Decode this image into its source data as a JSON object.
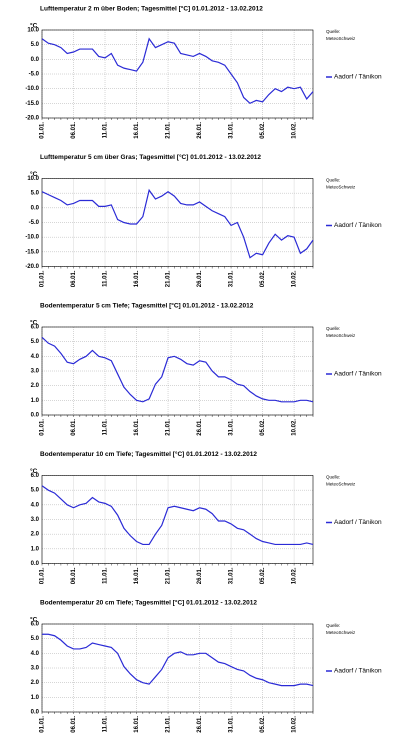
{
  "chart_data": [
    {
      "type": "line",
      "title": "Lufttemperatur 2 m über Boden; Tagesmittel [°C]  01.01.2012 - 13.02.2012",
      "y_label": "°C",
      "source": [
        "Quelle:",
        "MeteoSchweiz"
      ],
      "categories": [
        "01.01.",
        null,
        null,
        null,
        null,
        "06.01.",
        null,
        null,
        null,
        null,
        "11.01.",
        null,
        null,
        null,
        null,
        "16.01.",
        null,
        null,
        null,
        null,
        "21.01.",
        null,
        null,
        null,
        null,
        "26.01.",
        null,
        null,
        null,
        null,
        "31.01.",
        null,
        null,
        null,
        null,
        "05.02.",
        null,
        null,
        null,
        null,
        "10.02.",
        null,
        null,
        null
      ],
      "series": [
        {
          "name": "Aadorf / Tänikon",
          "color": "#2b2bd6",
          "values": [
            7,
            5.5,
            5,
            4,
            2,
            2.5,
            3.5,
            3.5,
            3.5,
            1,
            0.5,
            2,
            -2,
            -3,
            -3.5,
            -4,
            -1,
            7,
            4,
            5,
            6,
            5.5,
            2,
            1.5,
            1,
            2,
            1,
            -0.5,
            -1,
            -2,
            -5,
            -8,
            -13,
            -15,
            -14,
            -14.5,
            -12,
            -10,
            -11,
            -9.5,
            -10,
            -9.5,
            -13.5,
            -11
          ]
        }
      ],
      "ylim": [
        -20,
        10
      ],
      "yticks": [
        {
          "value": -20,
          "label": "-20.0"
        },
        {
          "value": -15,
          "label": "-15.0"
        },
        {
          "value": -10,
          "label": "-10.0"
        },
        {
          "value": -5,
          "label": "-5.0"
        },
        {
          "value": 0,
          "label": "0.0"
        },
        {
          "value": 5,
          "label": "5.0"
        },
        {
          "value": 10,
          "label": "10.0"
        }
      ],
      "grid": true
    },
    {
      "type": "line",
      "title": "Lufttemperatur 5 cm über Gras; Tagesmittel [°C]  01.01.2012 - 13.02.2012",
      "y_label": "°C",
      "source": [
        "Quelle:",
        "MeteoSchweiz"
      ],
      "categories": [
        "01.01.",
        null,
        null,
        null,
        null,
        "06.01.",
        null,
        null,
        null,
        null,
        "11.01.",
        null,
        null,
        null,
        null,
        "16.01.",
        null,
        null,
        null,
        null,
        "21.01.",
        null,
        null,
        null,
        null,
        "26.01.",
        null,
        null,
        null,
        null,
        "31.01.",
        null,
        null,
        null,
        null,
        "05.02.",
        null,
        null,
        null,
        null,
        "10.02.",
        null,
        null,
        null
      ],
      "series": [
        {
          "name": "Aadorf / Tänikon",
          "color": "#2b2bd6",
          "values": [
            5.5,
            4.5,
            3.5,
            2.5,
            1,
            1.5,
            2.5,
            2.5,
            2.5,
            0.5,
            0.5,
            1,
            -4,
            -5,
            -5.5,
            -5.5,
            -3,
            6,
            3,
            4,
            5.5,
            4,
            1.5,
            1,
            1,
            2,
            0.5,
            -1,
            -2,
            -3,
            -6,
            -5,
            -10,
            -17,
            -15.5,
            -16,
            -12,
            -9,
            -11,
            -9.5,
            -10,
            -15.5,
            -14,
            -11
          ]
        }
      ],
      "ylim": [
        -20,
        10
      ],
      "yticks": [
        {
          "value": -20,
          "label": "-20.0"
        },
        {
          "value": -15,
          "label": "-15.0"
        },
        {
          "value": -10,
          "label": "-10.0"
        },
        {
          "value": -5,
          "label": "-5.0"
        },
        {
          "value": 0,
          "label": "0.0"
        },
        {
          "value": 5,
          "label": "5.0"
        },
        {
          "value": 10,
          "label": "10.0"
        }
      ],
      "grid": true
    },
    {
      "type": "line",
      "title": "Bodentemperatur 5 cm Tiefe; Tagesmittel [°C]  01.01.2012 - 13.02.2012",
      "y_label": "°C",
      "source": [
        "Quelle:",
        "MeteoSchweiz"
      ],
      "categories": [
        "01.01.",
        null,
        null,
        null,
        null,
        "06.01.",
        null,
        null,
        null,
        null,
        "11.01.",
        null,
        null,
        null,
        null,
        "16.01.",
        null,
        null,
        null,
        null,
        "21.01.",
        null,
        null,
        null,
        null,
        "26.01.",
        null,
        null,
        null,
        null,
        "31.01.",
        null,
        null,
        null,
        null,
        "05.02.",
        null,
        null,
        null,
        null,
        "10.02.",
        null,
        null,
        null
      ],
      "series": [
        {
          "name": "Aadorf / Tänikon",
          "color": "#2b2bd6",
          "values": [
            5.3,
            4.9,
            4.7,
            4.2,
            3.6,
            3.5,
            3.8,
            4.0,
            4.4,
            4.0,
            3.9,
            3.7,
            2.8,
            1.9,
            1.4,
            1.0,
            0.9,
            1.1,
            2.1,
            2.6,
            3.9,
            4.0,
            3.8,
            3.5,
            3.4,
            3.7,
            3.6,
            3.0,
            2.6,
            2.6,
            2.4,
            2.1,
            2.0,
            1.6,
            1.3,
            1.1,
            1.0,
            1.0,
            0.9,
            0.9,
            0.9,
            1.0,
            1.0,
            0.9
          ]
        }
      ],
      "ylim": [
        0,
        6
      ],
      "yticks": [
        {
          "value": 0,
          "label": "0.0"
        },
        {
          "value": 1,
          "label": "1.0"
        },
        {
          "value": 2,
          "label": "2.0"
        },
        {
          "value": 3,
          "label": "3.0"
        },
        {
          "value": 4,
          "label": "4.0"
        },
        {
          "value": 5,
          "label": "5.0"
        },
        {
          "value": 6,
          "label": "6.0"
        }
      ],
      "grid": true
    },
    {
      "type": "line",
      "title": "Bodentemperatur 10 cm Tiefe; Tagesmittel [°C]  01.01.2012 - 13.02.2012",
      "y_label": "°C",
      "source": [
        "Quelle:",
        "MeteoSchweiz"
      ],
      "categories": [
        "01.01.",
        null,
        null,
        null,
        null,
        "06.01.",
        null,
        null,
        null,
        null,
        "11.01.",
        null,
        null,
        null,
        null,
        "16.01.",
        null,
        null,
        null,
        null,
        "21.01.",
        null,
        null,
        null,
        null,
        "26.01.",
        null,
        null,
        null,
        null,
        "31.01.",
        null,
        null,
        null,
        null,
        "05.02.",
        null,
        null,
        null,
        null,
        "10.02.",
        null,
        null,
        null
      ],
      "series": [
        {
          "name": "Aadorf / Tänikon",
          "color": "#2b2bd6",
          "values": [
            5.3,
            5.0,
            4.8,
            4.4,
            4.0,
            3.8,
            4.0,
            4.1,
            4.5,
            4.2,
            4.1,
            3.9,
            3.3,
            2.4,
            1.9,
            1.5,
            1.3,
            1.3,
            2.0,
            2.6,
            3.8,
            3.9,
            3.8,
            3.7,
            3.6,
            3.8,
            3.7,
            3.4,
            2.9,
            2.9,
            2.7,
            2.4,
            2.3,
            2.0,
            1.7,
            1.5,
            1.4,
            1.3,
            1.3,
            1.3,
            1.3,
            1.3,
            1.4,
            1.3
          ]
        }
      ],
      "ylim": [
        0,
        6
      ],
      "yticks": [
        {
          "value": 0,
          "label": "0.0"
        },
        {
          "value": 1,
          "label": "1.0"
        },
        {
          "value": 2,
          "label": "2.0"
        },
        {
          "value": 3,
          "label": "3.0"
        },
        {
          "value": 4,
          "label": "4.0"
        },
        {
          "value": 5,
          "label": "5.0"
        },
        {
          "value": 6,
          "label": "6.0"
        }
      ],
      "grid": true
    },
    {
      "type": "line",
      "title": "Bodentemperatur 20 cm Tiefe; Tagesmittel [°C]  01.01.2012 - 13.02.2012",
      "y_label": "°C",
      "source": [
        "Quelle:",
        "MeteoSchweiz"
      ],
      "categories": [
        "01.01.",
        null,
        null,
        null,
        null,
        "06.01.",
        null,
        null,
        null,
        null,
        "11.01.",
        null,
        null,
        null,
        null,
        "16.01.",
        null,
        null,
        null,
        null,
        "21.01.",
        null,
        null,
        null,
        null,
        "26.01.",
        null,
        null,
        null,
        null,
        "31.01.",
        null,
        null,
        null,
        null,
        "05.02.",
        null,
        null,
        null,
        null,
        "10.02.",
        null,
        null,
        null
      ],
      "series": [
        {
          "name": "Aadorf / Tänikon",
          "color": "#2b2bd6",
          "values": [
            5.3,
            5.3,
            5.2,
            4.9,
            4.5,
            4.3,
            4.3,
            4.4,
            4.7,
            4.6,
            4.5,
            4.4,
            4.0,
            3.1,
            2.6,
            2.2,
            2.0,
            1.9,
            2.4,
            2.9,
            3.7,
            4.0,
            4.1,
            3.9,
            3.9,
            4.0,
            4.0,
            3.7,
            3.4,
            3.3,
            3.1,
            2.9,
            2.8,
            2.5,
            2.3,
            2.2,
            2.0,
            1.9,
            1.8,
            1.8,
            1.8,
            1.9,
            1.9,
            1.8
          ]
        }
      ],
      "ylim": [
        0,
        6
      ],
      "yticks": [
        {
          "value": 0,
          "label": "0.0"
        },
        {
          "value": 1,
          "label": "1.0"
        },
        {
          "value": 2,
          "label": "2.0"
        },
        {
          "value": 3,
          "label": "3.0"
        },
        {
          "value": 4,
          "label": "4.0"
        },
        {
          "value": 5,
          "label": "5.0"
        },
        {
          "value": 6,
          "label": "6.0"
        }
      ],
      "grid": true
    }
  ]
}
